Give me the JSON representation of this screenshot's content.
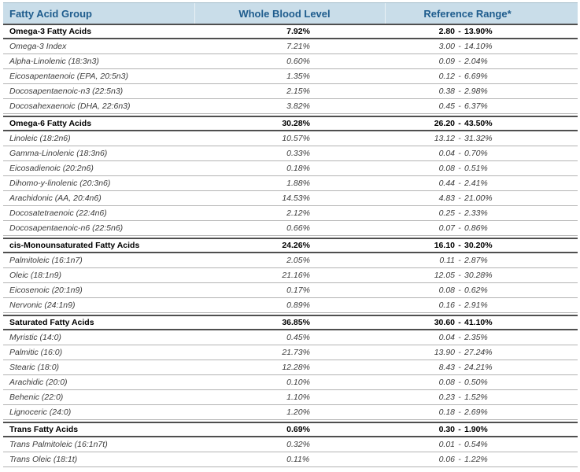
{
  "table": {
    "columns": [
      {
        "label": "Fatty Acid Group"
      },
      {
        "label": "Whole Blood Level"
      },
      {
        "label": "Reference Range*"
      }
    ],
    "range_separator": "-",
    "rows": [
      {
        "type": "group",
        "name": "Omega-3 Fatty Acids",
        "value": "7.92%",
        "range": "2.80 - 13.90%"
      },
      {
        "type": "detail",
        "name": "Omega-3 Index",
        "value": "7.21%",
        "range": "3.00 - 14.10%"
      },
      {
        "type": "detail",
        "name": "Alpha-Linolenic (18:3n3)",
        "value": "0.60%",
        "range": "0.09 - 2.04%"
      },
      {
        "type": "detail",
        "name": "Eicosapentaenoic (EPA, 20:5n3)",
        "value": "1.35%",
        "range": "0.12 - 6.69%"
      },
      {
        "type": "detail",
        "name": "Docosapentaenoic-n3 (22:5n3)",
        "value": "2.15%",
        "range": "0.38 - 2.98%"
      },
      {
        "type": "detail",
        "name": "Docosahexaenoic (DHA, 22:6n3)",
        "value": "3.82%",
        "range": "0.45 - 6.37%"
      },
      {
        "type": "group",
        "name": "Omega-6 Fatty Acids",
        "value": "30.28%",
        "range": "26.20 - 43.50%"
      },
      {
        "type": "detail",
        "name": "Linoleic (18:2n6)",
        "value": "10.57%",
        "range": "13.12 - 31.32%"
      },
      {
        "type": "detail",
        "name": "Gamma-Linolenic (18:3n6)",
        "value": "0.33%",
        "range": "0.04 - 0.70%"
      },
      {
        "type": "detail",
        "name": "Eicosadienoic (20:2n6)",
        "value": "0.18%",
        "range": "0.08 - 0.51%"
      },
      {
        "type": "detail",
        "name": "Dihomo-y-linolenic (20:3n6)",
        "value": "1.88%",
        "range": "0.44 - 2.41%"
      },
      {
        "type": "detail",
        "name": "Arachidonic (AA, 20:4n6)",
        "value": "14.53%",
        "range": "4.83 - 21.00%"
      },
      {
        "type": "detail",
        "name": "Docosatetraenoic (22:4n6)",
        "value": "2.12%",
        "range": "0.25 - 2.33%"
      },
      {
        "type": "detail",
        "name": "Docosapentaenoic-n6 (22:5n6)",
        "value": "0.66%",
        "range": "0.07 - 0.86%"
      },
      {
        "type": "group",
        "name": "cis-Monounsaturated Fatty Acids",
        "value": "24.26%",
        "range": "16.10 - 30.20%"
      },
      {
        "type": "detail",
        "name": "Palmitoleic (16:1n7)",
        "value": "2.05%",
        "range": "0.11 - 2.87%"
      },
      {
        "type": "detail",
        "name": "Oleic (18:1n9)",
        "value": "21.16%",
        "range": "12.05 - 30.28%"
      },
      {
        "type": "detail",
        "name": "Eicosenoic (20:1n9)",
        "value": "0.17%",
        "range": "0.08 - 0.62%"
      },
      {
        "type": "detail",
        "name": "Nervonic (24:1n9)",
        "value": "0.89%",
        "range": "0.16 - 2.91%"
      },
      {
        "type": "group",
        "name": "Saturated Fatty Acids",
        "value": "36.85%",
        "range": "30.60 - 41.10%"
      },
      {
        "type": "detail",
        "name": "Myristic (14:0)",
        "value": "0.45%",
        "range": "0.04 - 2.35%"
      },
      {
        "type": "detail",
        "name": "Palmitic (16:0)",
        "value": "21.73%",
        "range": "13.90 - 27.24%"
      },
      {
        "type": "detail",
        "name": "Stearic (18:0)",
        "value": "12.28%",
        "range": "8.43 - 24.21%"
      },
      {
        "type": "detail",
        "name": "Arachidic (20:0)",
        "value": "0.10%",
        "range": "0.08 - 0.50%"
      },
      {
        "type": "detail",
        "name": "Behenic (22:0)",
        "value": "1.10%",
        "range": "0.23 - 1.52%"
      },
      {
        "type": "detail",
        "name": "Lignoceric (24:0)",
        "value": "1.20%",
        "range": "0.18 - 2.69%"
      },
      {
        "type": "group",
        "name": "Trans Fatty Acids",
        "value": "0.69%",
        "range": "0.30 - 1.90%"
      },
      {
        "type": "detail",
        "name": "Trans Palmitoleic (16:1n7t)",
        "value": "0.32%",
        "range": "0.01 - 0.54%"
      },
      {
        "type": "detail",
        "name": "Trans Oleic (18:1t)",
        "value": "0.11%",
        "range": "0.06 - 1.22%"
      }
    ]
  },
  "colors": {
    "header_background": "#c9dde9",
    "header_text": "#1e5c8d",
    "section_border": "#4f4f4f",
    "row_divider": "#b3b3b3",
    "detail_text": "#3d3d3d",
    "group_text": "#000000"
  }
}
